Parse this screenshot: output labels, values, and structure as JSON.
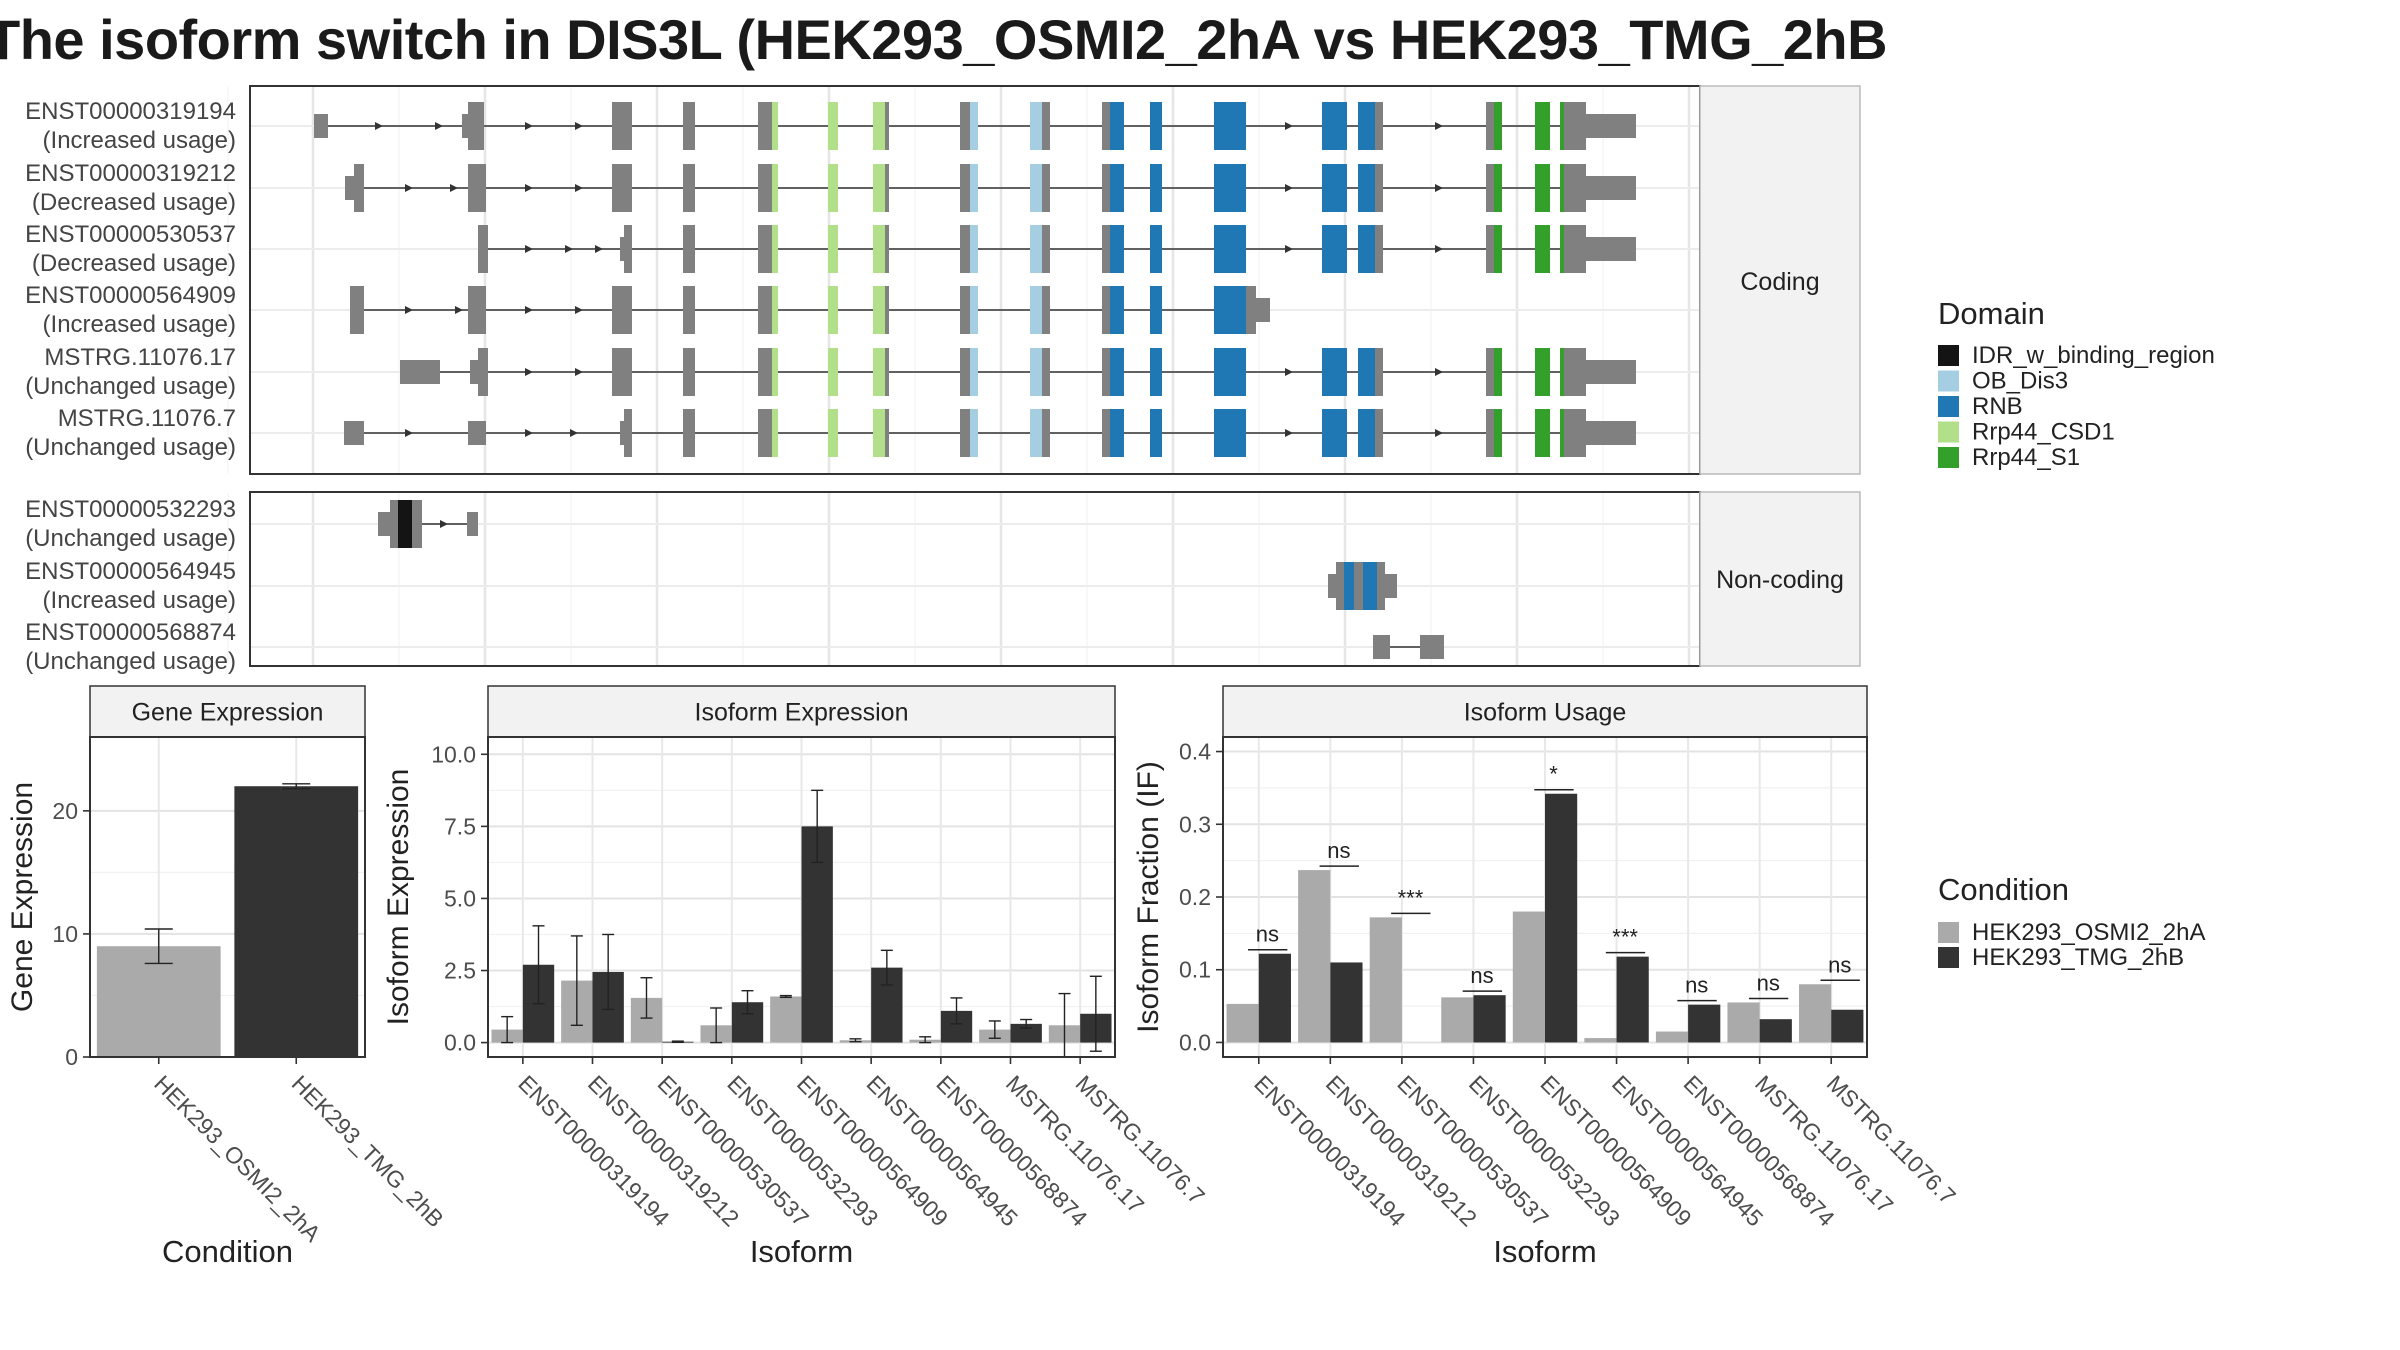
{
  "title": "The isoform switch in DIS3L (HEK293_OSMI2_2hA vs HEK293_TMG_2hB",
  "colors": {
    "IDR_w_binding_region": "#141414",
    "OB_Dis3": "#a6cee3",
    "RNB": "#1f78b4",
    "Rrp44_CSD1": "#b2df8a",
    "Rrp44_S1": "#33a02c",
    "exon": "#808080",
    "cond1": "#aaaaaa",
    "cond2": "#333333"
  },
  "structure": {
    "coding_label": "Coding",
    "noncoding_label": "Non-coding",
    "coding": [
      {
        "id": "ENST00000319194",
        "usage": "(Increased usage)"
      },
      {
        "id": "ENST00000319212",
        "usage": "(Decreased usage)"
      },
      {
        "id": "ENST00000530537",
        "usage": "(Decreased usage)"
      },
      {
        "id": "ENST00000564909",
        "usage": "(Increased usage)"
      },
      {
        "id": "MSTRG.11076.17",
        "usage": "(Unchanged usage)"
      },
      {
        "id": "MSTRG.11076.7",
        "usage": "(Unchanged usage)"
      }
    ],
    "noncoding": [
      {
        "id": "ENST00000532293",
        "usage": "(Unchanged usage)"
      },
      {
        "id": "ENST00000564945",
        "usage": "(Increased usage)"
      },
      {
        "id": "ENST00000568874",
        "usage": "(Unchanged usage)"
      }
    ]
  },
  "legend_domain": {
    "title": "Domain",
    "items": [
      "IDR_w_binding_region",
      "OB_Dis3",
      "RNB",
      "Rrp44_CSD1",
      "Rrp44_S1"
    ]
  },
  "legend_condition": {
    "title": "Condition",
    "items": [
      "HEK293_OSMI2_2hA",
      "HEK293_TMG_2hB"
    ]
  },
  "chart_data": [
    {
      "type": "bar",
      "title": "Gene Expression",
      "xlabel": "Condition",
      "ylabel": "Gene Expression",
      "categories": [
        "HEK293_OSMI2_2hA",
        "HEK293_TMG_2hB"
      ],
      "values": [
        9.0,
        22.0
      ],
      "errors": [
        1.4,
        0.2
      ],
      "ylim": [
        0,
        26
      ],
      "yticks": [
        0,
        10,
        20
      ]
    },
    {
      "type": "bar",
      "title": "Isoform Expression",
      "xlabel": "Isoform",
      "ylabel": "Isoform Expression",
      "categories": [
        "ENST00000319194",
        "ENST00000319212",
        "ENST00000530537",
        "ENST00000532293",
        "ENST00000564909",
        "ENST00000564945",
        "ENST00000568874",
        "MSTRG.11076.17",
        "MSTRG.11076.7"
      ],
      "ylim": [
        -0.5,
        10.6
      ],
      "yticks": [
        "0.0",
        "2.5",
        "5.0",
        "7.5",
        "10.0"
      ],
      "series": [
        {
          "name": "HEK293_OSMI2_2hA",
          "values": [
            0.45,
            2.15,
            1.55,
            0.6,
            1.6,
            0.08,
            0.1,
            0.45,
            0.6
          ],
          "errors": [
            0.45,
            1.55,
            0.7,
            0.6,
            0.03,
            0.05,
            0.1,
            0.3,
            1.1
          ]
        },
        {
          "name": "HEK293_TMG_2hB",
          "values": [
            2.7,
            2.45,
            0.03,
            1.4,
            7.5,
            2.6,
            1.1,
            0.65,
            1.0
          ],
          "errors": [
            1.35,
            1.3,
            0.02,
            0.4,
            1.25,
            0.6,
            0.45,
            0.15,
            1.3
          ]
        }
      ]
    },
    {
      "type": "bar",
      "title": "Isoform Usage",
      "xlabel": "Isoform",
      "ylabel": "Isoform Fraction (IF)",
      "categories": [
        "ENST00000319194",
        "ENST00000319212",
        "ENST00000530537",
        "ENST00000532293",
        "ENST00000564909",
        "ENST00000564945",
        "ENST00000568874",
        "MSTRG.11076.17",
        "MSTRG.11076.7"
      ],
      "ylim": [
        -0.02,
        0.42
      ],
      "yticks": [
        "0.0",
        "0.1",
        "0.2",
        "0.3",
        "0.4"
      ],
      "series": [
        {
          "name": "HEK293_OSMI2_2hA",
          "values": [
            0.053,
            0.237,
            0.172,
            0.062,
            0.18,
            0.006,
            0.015,
            0.055,
            0.08
          ]
        },
        {
          "name": "HEK293_TMG_2hB",
          "values": [
            0.122,
            0.11,
            0.0,
            0.065,
            0.342,
            0.118,
            0.052,
            0.032,
            0.045
          ]
        }
      ],
      "significance": [
        "ns",
        "ns",
        "***",
        "ns",
        "*",
        "***",
        "ns",
        "ns",
        "ns"
      ]
    }
  ]
}
